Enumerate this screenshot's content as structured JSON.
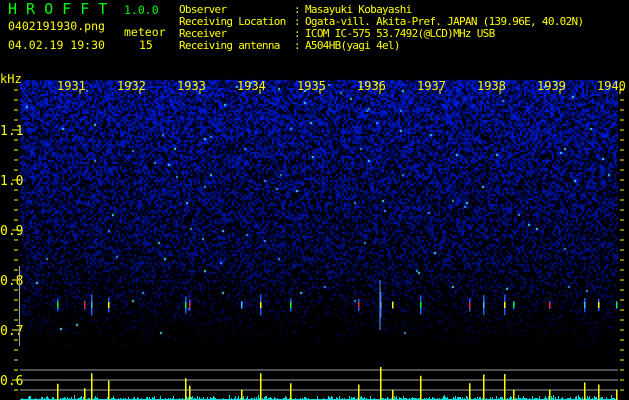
{
  "header": {
    "app_name": "H R O F F T",
    "version": "1.0.0",
    "filename": "0402191930.png",
    "datetime": "04.02.19 19:30",
    "meteor_label": "meteor",
    "meteor_count": "15",
    "info": [
      {
        "label": "Observer",
        "value": "Masayuki Kobayashi"
      },
      {
        "label": "Receiving Location",
        "value": "Ogata-vill. Akita-Pref. JAPAN (139.96E, 40.02N)"
      },
      {
        "label": "Receiver",
        "value": "ICOM IC-575 53.7492(@LCD)MHz USB"
      },
      {
        "label": "Receiving antenna",
        "value": "A504HB(yagi 4el)"
      }
    ]
  },
  "colors": {
    "text": "#ffff00",
    "title": "#00ff00",
    "noise": "#0a28ff",
    "histogram": "#00e0e0",
    "spike": "#ffff00",
    "grid": "#a0a0a0"
  },
  "chart_data": {
    "type": "heatmap",
    "ylabel": "kHz",
    "yticks": [
      "1.1",
      "1.0",
      "0.9",
      "0.8",
      "0.7",
      "0.6"
    ],
    "ylim": [
      0.56,
      1.2
    ],
    "xticks": [
      "1931",
      "1932",
      "1933",
      "1934",
      "1935",
      "1936",
      "1937",
      "1938",
      "1939",
      "1940"
    ],
    "xlim": [
      "19:30:00",
      "19:40:00"
    ],
    "echoes": [
      {
        "time": "19:30:37",
        "freq": 0.75,
        "strength": 0.33
      },
      {
        "time": "19:31:04",
        "freq": 0.75,
        "strength": 0.15
      },
      {
        "time": "19:31:11",
        "freq": 0.75,
        "strength": 0.75
      },
      {
        "time": "19:31:28",
        "freq": 0.75,
        "strength": 0.45
      },
      {
        "time": "19:32:45",
        "freq": 0.75,
        "strength": 0.55
      },
      {
        "time": "19:32:49",
        "freq": 0.75,
        "strength": 0.25
      },
      {
        "time": "19:33:41",
        "freq": 0.75,
        "strength": 0.1
      },
      {
        "time": "19:34:00",
        "freq": 0.75,
        "strength": 0.75
      },
      {
        "time": "19:34:30",
        "freq": 0.75,
        "strength": 0.35
      },
      {
        "time": "19:35:38",
        "freq": 0.75,
        "strength": 0.3
      },
      {
        "time": "19:36:00",
        "freq": 0.75,
        "strength": 1.0
      },
      {
        "time": "19:36:12",
        "freq": 0.75,
        "strength": 0.1
      },
      {
        "time": "19:36:40",
        "freq": 0.75,
        "strength": 0.65
      },
      {
        "time": "19:37:29",
        "freq": 0.75,
        "strength": 0.35
      },
      {
        "time": "19:37:43",
        "freq": 0.75,
        "strength": 0.7
      },
      {
        "time": "19:38:04",
        "freq": 0.75,
        "strength": 0.72
      },
      {
        "time": "19:38:13",
        "freq": 0.75,
        "strength": 0.1
      },
      {
        "time": "19:38:49",
        "freq": 0.75,
        "strength": 0.1
      },
      {
        "time": "19:39:24",
        "freq": 0.75,
        "strength": 0.38
      },
      {
        "time": "19:39:38",
        "freq": 0.75,
        "strength": 0.3
      },
      {
        "time": "19:39:56",
        "freq": 0.75,
        "strength": 0.1
      }
    ]
  }
}
